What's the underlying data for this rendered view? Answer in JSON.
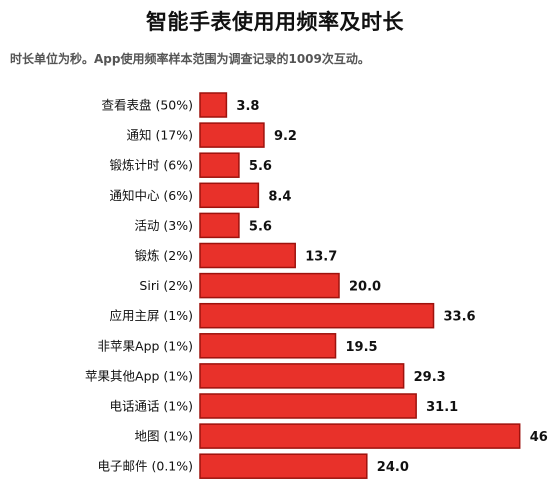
{
  "title": "智能手表使用用频率及时长",
  "subtitle": "时长单位为秒。App使用频率样本范围为调查记录的1009次互动。",
  "colors": {
    "bar_fill": "#e8312a",
    "bar_stroke": "#9e120d"
  },
  "chart_data": {
    "type": "bar",
    "orientation": "horizontal",
    "categories": [
      "查看表盘 (50%)",
      "通知 (17%)",
      "锻炼计时 (6%)",
      "通知中心 (6%)",
      "活动 (3%)",
      "锻炼 (2%)",
      "Siri (2%)",
      "应用主屏 (1%)",
      "非苹果App (1%)",
      "苹果其他App (1%)",
      "电话通话 (1%)",
      "地图 (1%)",
      "电子邮件 (0.1%)"
    ],
    "values": [
      3.8,
      9.2,
      5.6,
      8.4,
      5.6,
      13.7,
      20.0,
      33.6,
      19.5,
      29.3,
      31.1,
      46.0,
      24.0
    ],
    "value_labels": [
      "3.8",
      "9.2",
      "5.6",
      "8.4",
      "5.6",
      "13.7",
      "20.0",
      "33.6",
      "19.5",
      "29.3",
      "31.1",
      "46",
      "24.0"
    ]
  }
}
